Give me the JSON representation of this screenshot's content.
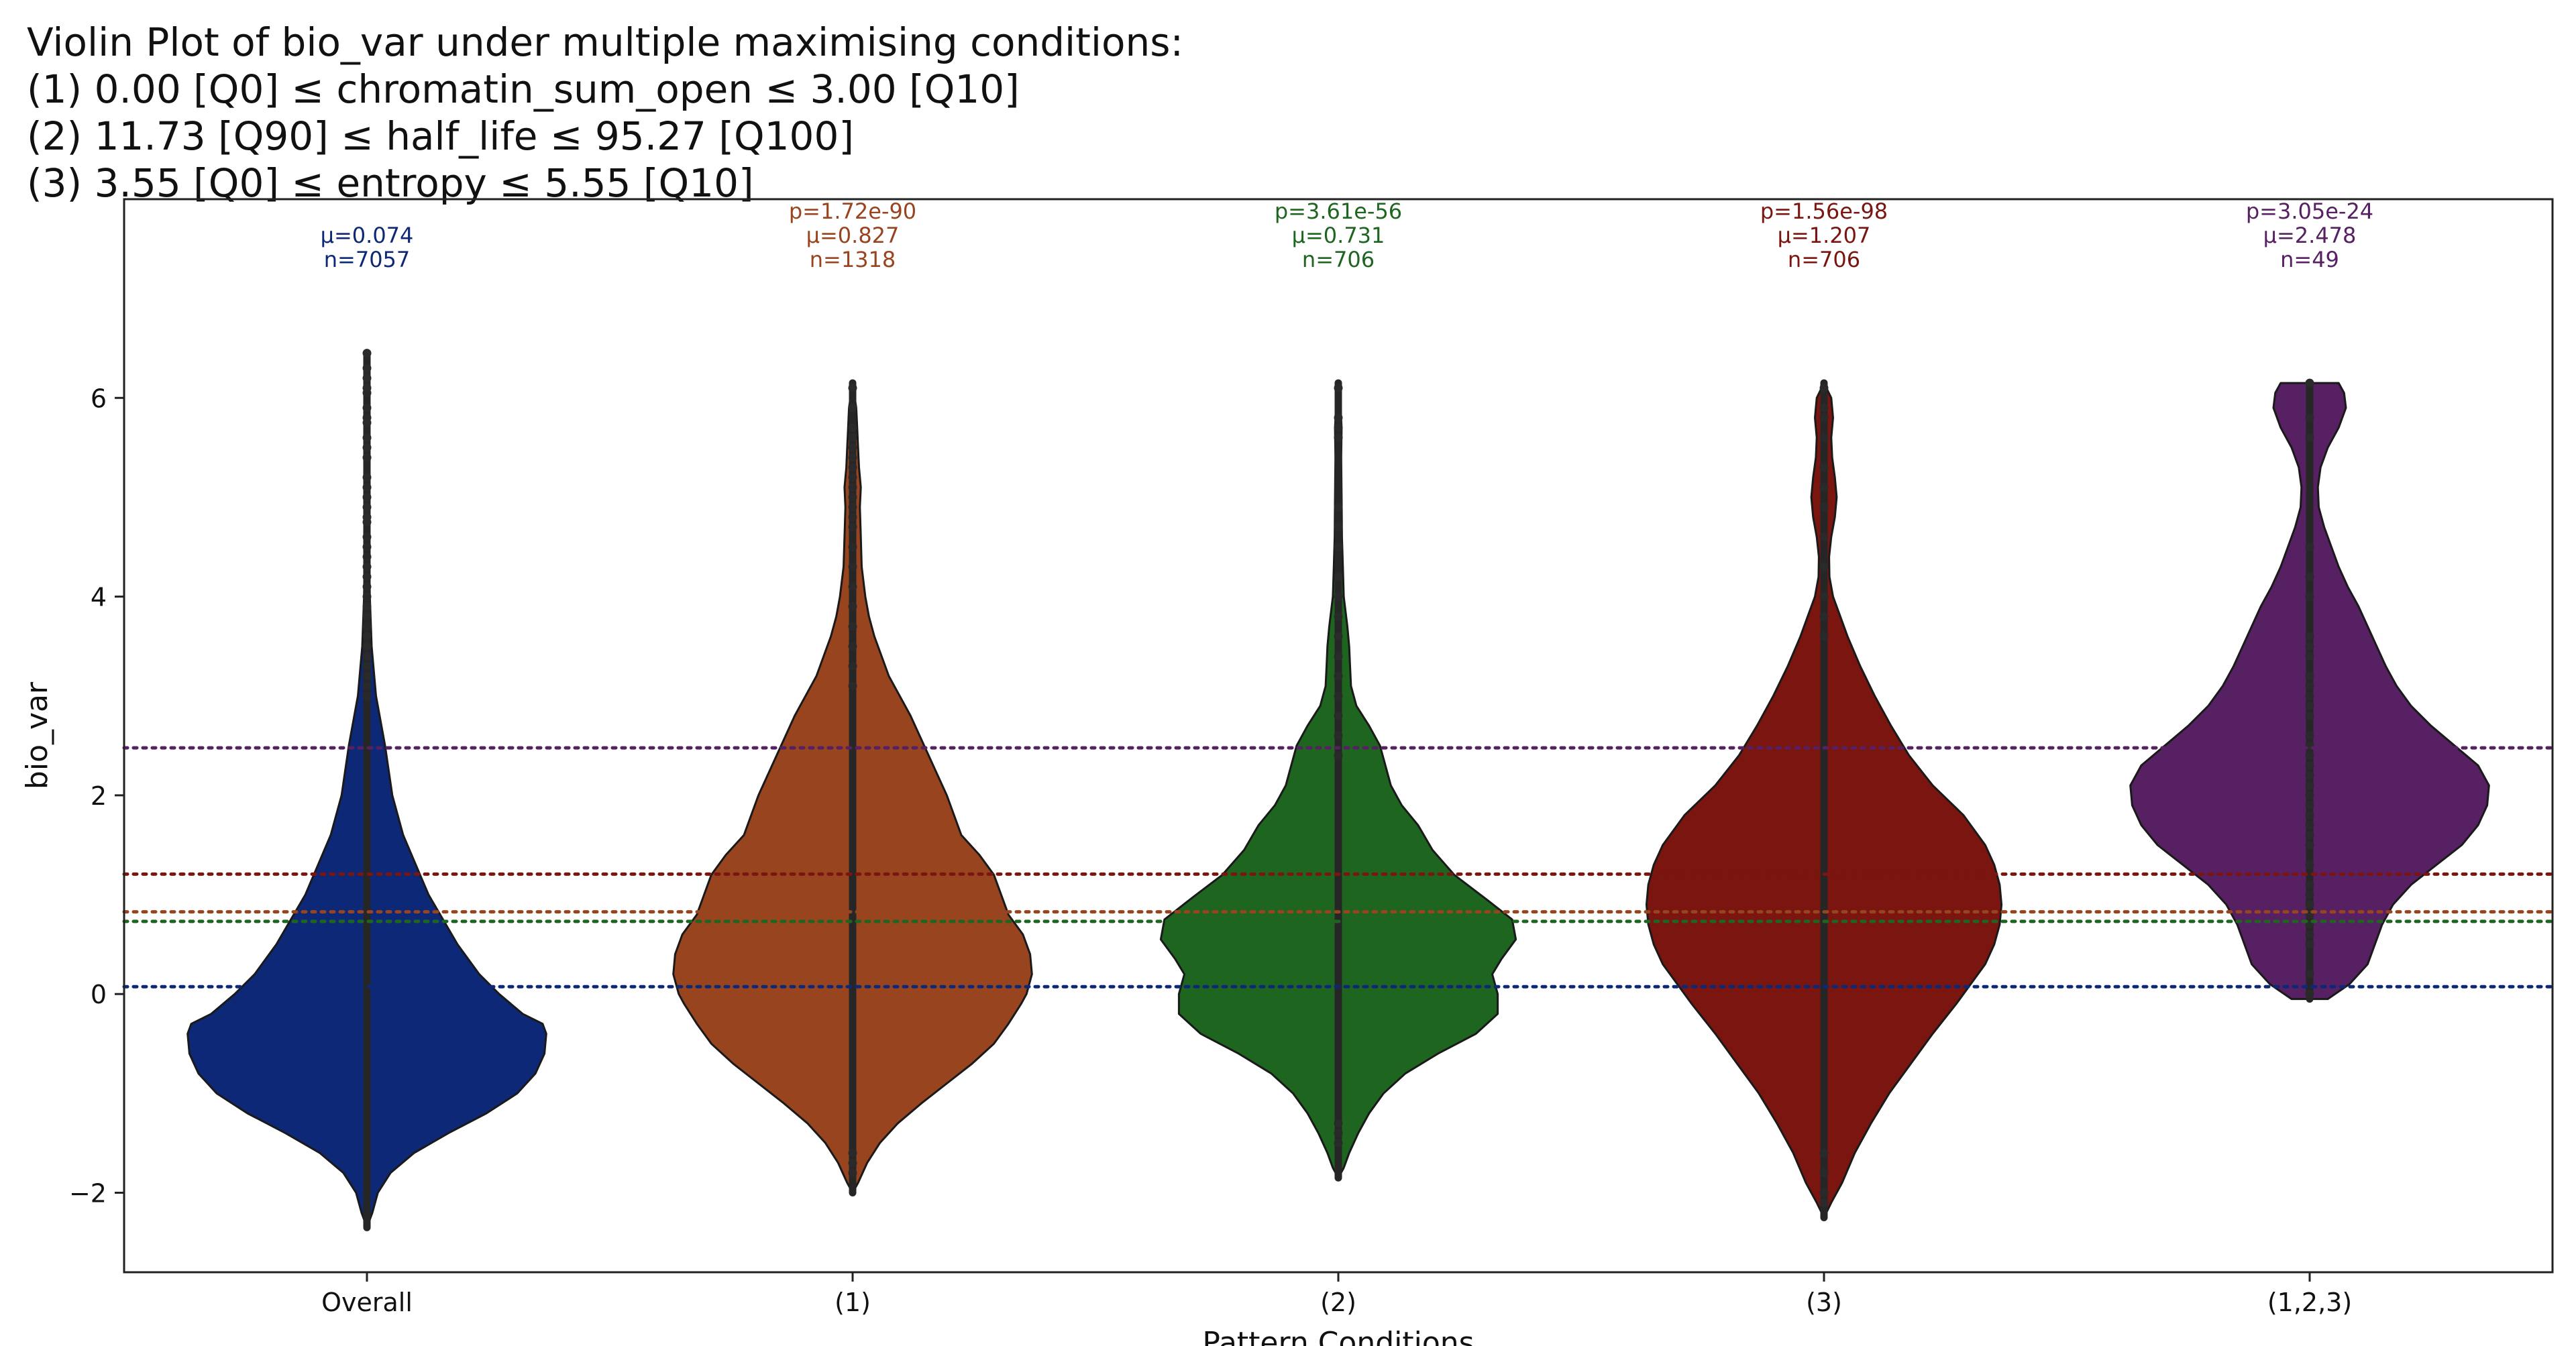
{
  "chart_data": {
    "type": "violin",
    "title": "Violin Plot of bio_var under multiple maximising conditions:",
    "title_lines": [
      "(1) 0.00 [Q0] ≤ chromatin_sum_open ≤ 3.00 [Q10]",
      "(2) 11.73 [Q90] ≤ half_life ≤ 95.27 [Q100]",
      "(3) 3.55 [Q0] ≤ entropy ≤ 5.55 [Q10]"
    ],
    "xlabel": "Pattern Conditions",
    "ylabel": "bio_var",
    "ylim": [
      -2.8,
      8.0
    ],
    "yticks": [
      -2,
      0,
      2,
      4,
      6
    ],
    "ytick_labels": [
      "−2",
      "0",
      "2",
      "4",
      "6"
    ],
    "grid": false,
    "categories": [
      "Overall",
      "(1)",
      "(2)",
      "(3)",
      "(1,2,3)"
    ],
    "groups": [
      {
        "category": "Overall",
        "color": "#0e2878",
        "mean": 0.074,
        "mean_label": "μ=0.074",
        "n_label": "n=7057",
        "p_label": "",
        "profile": [
          [
            -2.35,
            0.0
          ],
          [
            -2.2,
            0.03
          ],
          [
            -2.0,
            0.06
          ],
          [
            -1.8,
            0.13
          ],
          [
            -1.6,
            0.26
          ],
          [
            -1.4,
            0.45
          ],
          [
            -1.2,
            0.66
          ],
          [
            -1.0,
            0.83
          ],
          [
            -0.8,
            0.93
          ],
          [
            -0.6,
            0.98
          ],
          [
            -0.4,
            0.99
          ],
          [
            -0.3,
            0.97
          ],
          [
            -0.2,
            0.86
          ],
          [
            0.0,
            0.73
          ],
          [
            0.2,
            0.62
          ],
          [
            0.5,
            0.5
          ],
          [
            1.0,
            0.34
          ],
          [
            1.3,
            0.27
          ],
          [
            1.6,
            0.2
          ],
          [
            2.0,
            0.14
          ],
          [
            2.5,
            0.1
          ],
          [
            3.0,
            0.05
          ],
          [
            3.5,
            0.026
          ],
          [
            4.0,
            0.016
          ],
          [
            5.0,
            0.008
          ],
          [
            6.0,
            0.005
          ],
          [
            6.45,
            0.0
          ]
        ],
        "points": [
          6.45,
          6.3,
          6.2,
          6.1,
          6.05,
          5.9,
          5.8,
          5.75,
          5.6,
          5.5,
          5.4,
          5.2,
          5.1,
          5.0,
          4.9,
          4.8,
          4.75,
          4.6,
          4.5,
          4.4,
          4.3,
          4.2,
          4.1,
          4.0,
          3.9,
          3.8,
          3.7,
          3.6,
          3.5,
          3.4,
          3.3,
          3.2,
          3.1,
          3.0
        ]
      },
      {
        "category": "(1)",
        "color": "#98451f",
        "mean": 0.827,
        "mean_label": "μ=0.827",
        "n_label": "n=1318",
        "p_label": "p=1.72e-90",
        "profile": [
          [
            -2.0,
            0.0
          ],
          [
            -1.9,
            0.03
          ],
          [
            -1.7,
            0.08
          ],
          [
            -1.5,
            0.15
          ],
          [
            -1.3,
            0.25
          ],
          [
            -1.1,
            0.38
          ],
          [
            -0.9,
            0.52
          ],
          [
            -0.7,
            0.66
          ],
          [
            -0.5,
            0.78
          ],
          [
            -0.3,
            0.86
          ],
          [
            -0.1,
            0.93
          ],
          [
            0.0,
            0.96
          ],
          [
            0.2,
            0.99
          ],
          [
            0.4,
            0.98
          ],
          [
            0.6,
            0.94
          ],
          [
            0.8,
            0.86
          ],
          [
            1.0,
            0.82
          ],
          [
            1.2,
            0.78
          ],
          [
            1.4,
            0.7
          ],
          [
            1.6,
            0.6
          ],
          [
            1.8,
            0.56
          ],
          [
            2.0,
            0.52
          ],
          [
            2.2,
            0.47
          ],
          [
            2.4,
            0.42
          ],
          [
            2.6,
            0.37
          ],
          [
            2.8,
            0.32
          ],
          [
            3.0,
            0.26
          ],
          [
            3.2,
            0.2
          ],
          [
            3.4,
            0.16
          ],
          [
            3.6,
            0.12
          ],
          [
            3.8,
            0.09
          ],
          [
            4.0,
            0.07
          ],
          [
            4.3,
            0.05
          ],
          [
            4.6,
            0.045
          ],
          [
            4.9,
            0.04
          ],
          [
            5.1,
            0.045
          ],
          [
            5.3,
            0.035
          ],
          [
            5.5,
            0.03
          ],
          [
            5.7,
            0.025
          ],
          [
            5.9,
            0.02
          ],
          [
            6.15,
            0.0
          ]
        ],
        "points": [
          6.1,
          5.9,
          5.7,
          5.6,
          5.5,
          5.4,
          5.3,
          5.2,
          5.1,
          5.0,
          4.9,
          4.8,
          4.7,
          4.5,
          4.3,
          4.1,
          3.9,
          3.7,
          3.5,
          3.3,
          3.1,
          -1.6,
          -1.7,
          -1.8
        ]
      },
      {
        "category": "(2)",
        "color": "#1e6520",
        "mean": 0.731,
        "mean_label": "μ=0.731",
        "n_label": "n=706",
        "p_label": "p=3.61e-56",
        "profile": [
          [
            -1.85,
            0.0
          ],
          [
            -1.75,
            0.03
          ],
          [
            -1.6,
            0.06
          ],
          [
            -1.4,
            0.11
          ],
          [
            -1.2,
            0.17
          ],
          [
            -1.0,
            0.25
          ],
          [
            -0.8,
            0.37
          ],
          [
            -0.6,
            0.55
          ],
          [
            -0.4,
            0.76
          ],
          [
            -0.2,
            0.88
          ],
          [
            0.0,
            0.88
          ],
          [
            0.2,
            0.85
          ],
          [
            0.35,
            0.9
          ],
          [
            0.55,
            0.98
          ],
          [
            0.75,
            0.96
          ],
          [
            0.95,
            0.82
          ],
          [
            1.2,
            0.64
          ],
          [
            1.45,
            0.52
          ],
          [
            1.7,
            0.44
          ],
          [
            1.9,
            0.35
          ],
          [
            2.1,
            0.29
          ],
          [
            2.3,
            0.26
          ],
          [
            2.5,
            0.23
          ],
          [
            2.7,
            0.17
          ],
          [
            2.9,
            0.1
          ],
          [
            3.1,
            0.07
          ],
          [
            3.3,
            0.065
          ],
          [
            3.5,
            0.06
          ],
          [
            3.7,
            0.05
          ],
          [
            4.0,
            0.03
          ],
          [
            4.3,
            0.025
          ],
          [
            4.6,
            0.02
          ],
          [
            5.0,
            0.018
          ],
          [
            5.4,
            0.016
          ],
          [
            5.7,
            0.018
          ],
          [
            6.0,
            0.01
          ],
          [
            6.15,
            0.0
          ]
        ],
        "points": [
          6.1,
          5.8,
          5.7,
          5.6,
          4.9,
          4.7,
          4.5,
          4.2,
          4.0,
          3.8,
          3.6,
          3.4,
          3.2,
          3.0,
          2.8,
          2.6,
          2.4,
          -1.3,
          -1.4,
          -1.5
        ]
      },
      {
        "category": "(3)",
        "color": "#7a1510",
        "mean": 1.207,
        "mean_label": "μ=1.207",
        "n_label": "n=706",
        "p_label": "p=1.56e-98",
        "profile": [
          [
            -2.25,
            0.0
          ],
          [
            -2.1,
            0.04
          ],
          [
            -1.9,
            0.1
          ],
          [
            -1.6,
            0.17
          ],
          [
            -1.3,
            0.26
          ],
          [
            -1.0,
            0.36
          ],
          [
            -0.7,
            0.48
          ],
          [
            -0.4,
            0.6
          ],
          [
            -0.1,
            0.73
          ],
          [
            0.1,
            0.81
          ],
          [
            0.3,
            0.89
          ],
          [
            0.5,
            0.94
          ],
          [
            0.7,
            0.97
          ],
          [
            0.9,
            0.98
          ],
          [
            1.1,
            0.97
          ],
          [
            1.3,
            0.94
          ],
          [
            1.5,
            0.89
          ],
          [
            1.8,
            0.77
          ],
          [
            2.1,
            0.6
          ],
          [
            2.4,
            0.47
          ],
          [
            2.7,
            0.37
          ],
          [
            3.0,
            0.28
          ],
          [
            3.3,
            0.2
          ],
          [
            3.6,
            0.13
          ],
          [
            3.8,
            0.09
          ],
          [
            4.0,
            0.05
          ],
          [
            4.2,
            0.03
          ],
          [
            4.4,
            0.028
          ],
          [
            4.6,
            0.04
          ],
          [
            4.8,
            0.06
          ],
          [
            5.0,
            0.07
          ],
          [
            5.2,
            0.06
          ],
          [
            5.4,
            0.045
          ],
          [
            5.6,
            0.04
          ],
          [
            5.8,
            0.05
          ],
          [
            6.0,
            0.04
          ],
          [
            6.15,
            0.0
          ]
        ],
        "points": [
          6.1,
          5.9,
          5.8,
          5.6,
          5.3,
          5.1,
          4.9,
          4.6,
          4.3,
          4.0,
          3.8,
          3.6,
          -1.6,
          -1.8,
          -2.0,
          -2.1
        ]
      },
      {
        "category": "(1,2,3)",
        "color": "#562063",
        "mean": 2.478,
        "mean_label": "μ=2.478",
        "n_label": "n=49",
        "p_label": "p=3.05e-24",
        "profile": [
          [
            -0.05,
            0.0
          ],
          [
            -0.05,
            0.1
          ],
          [
            0.1,
            0.22
          ],
          [
            0.3,
            0.32
          ],
          [
            0.5,
            0.36
          ],
          [
            0.7,
            0.4
          ],
          [
            0.9,
            0.46
          ],
          [
            1.1,
            0.56
          ],
          [
            1.3,
            0.7
          ],
          [
            1.5,
            0.84
          ],
          [
            1.7,
            0.93
          ],
          [
            1.9,
            0.98
          ],
          [
            2.1,
            0.99
          ],
          [
            2.3,
            0.93
          ],
          [
            2.5,
            0.8
          ],
          [
            2.7,
            0.67
          ],
          [
            2.9,
            0.56
          ],
          [
            3.1,
            0.48
          ],
          [
            3.3,
            0.42
          ],
          [
            3.5,
            0.37
          ],
          [
            3.7,
            0.32
          ],
          [
            3.9,
            0.27
          ],
          [
            4.1,
            0.21
          ],
          [
            4.3,
            0.16
          ],
          [
            4.5,
            0.12
          ],
          [
            4.7,
            0.08
          ],
          [
            4.9,
            0.05
          ],
          [
            5.1,
            0.045
          ],
          [
            5.3,
            0.06
          ],
          [
            5.5,
            0.1
          ],
          [
            5.7,
            0.16
          ],
          [
            5.9,
            0.2
          ],
          [
            6.05,
            0.19
          ],
          [
            6.15,
            0.16
          ],
          [
            6.15,
            0.0
          ]
        ],
        "points": [
          6.15,
          5.8,
          5.6,
          4.5,
          4.2,
          4.0,
          3.6,
          3.5,
          3.4,
          3.2,
          3.1,
          3.0,
          2.9,
          2.8,
          2.6,
          2.5,
          2.4,
          2.3,
          2.2,
          2.1,
          2.0,
          1.9,
          1.8,
          1.7,
          1.6,
          1.5,
          1.3,
          1.1,
          1.0,
          0.9,
          0.8,
          0.7,
          0.6,
          0.5,
          0.2,
          0.0
        ]
      }
    ]
  }
}
